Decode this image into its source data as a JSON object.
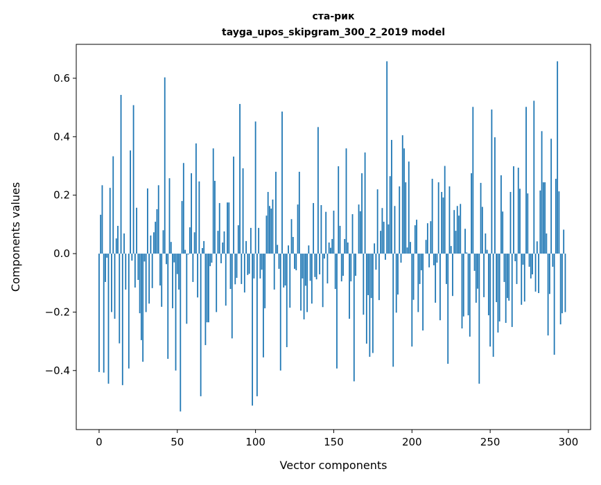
{
  "chart_data": {
    "type": "bar",
    "title": "ста-рик",
    "subtitle": "tayga_upos_skipgram_300_2_2019 model",
    "xlabel": "Vector components",
    "ylabel": "Components values",
    "xlim": [
      -14.6,
      314.2
    ],
    "ylim": [
      -0.602,
      0.716
    ],
    "xticks": [
      0,
      50,
      100,
      150,
      200,
      250,
      300
    ],
    "xtick_labels": [
      "0",
      "50",
      "100",
      "150",
      "200",
      "250",
      "300"
    ],
    "yticks": [
      -0.4,
      -0.2,
      0.0,
      0.2,
      0.4,
      0.6
    ],
    "ytick_labels": [
      "−0.4",
      "−0.2",
      "0.0",
      "0.2",
      "0.4",
      "0.6"
    ],
    "grid": false,
    "bar_color": "#1f77b4",
    "values": [
      -0.405,
      0.133,
      0.234,
      -0.407,
      -0.097,
      -0.014,
      -0.445,
      0.225,
      -0.2,
      0.333,
      -0.223,
      0.052,
      0.095,
      -0.307,
      0.543,
      -0.45,
      0.069,
      -0.123,
      0.0,
      -0.393,
      0.353,
      -0.024,
      0.508,
      -0.116,
      0.157,
      -0.09,
      -0.204,
      -0.296,
      -0.37,
      -0.027,
      -0.2,
      0.223,
      -0.171,
      0.062,
      -0.118,
      0.073,
      0.109,
      0.152,
      0.234,
      -0.109,
      -0.182,
      0.08,
      0.603,
      -0.036,
      -0.36,
      0.258,
      0.04,
      -0.187,
      -0.03,
      -0.4,
      -0.07,
      -0.123,
      -0.54,
      0.18,
      0.31,
      0.013,
      -0.24,
      -0.003,
      0.09,
      0.275,
      -0.097,
      0.073,
      0.377,
      -0.15,
      0.247,
      -0.488,
      0.019,
      0.043,
      -0.313,
      -0.235,
      -0.235,
      -0.043,
      -0.031,
      0.36,
      0.249,
      -0.2,
      0.078,
      0.173,
      -0.033,
      0.038,
      0.076,
      -0.178,
      0.175,
      0.175,
      -0.121,
      -0.29,
      0.332,
      -0.105,
      -0.083,
      0.097,
      0.512,
      -0.104,
      0.292,
      -0.133,
      0.043,
      -0.073,
      -0.069,
      0.088,
      -0.52,
      -0.085,
      0.452,
      -0.488,
      0.088,
      -0.085,
      -0.055,
      -0.355,
      -0.187,
      0.13,
      0.211,
      0.163,
      0.154,
      0.185,
      -0.123,
      0.28,
      0.03,
      -0.052,
      -0.4,
      0.486,
      -0.116,
      -0.109,
      -0.32,
      0.028,
      -0.185,
      0.118,
      0.057,
      -0.052,
      -0.057,
      0.168,
      0.28,
      -0.195,
      -0.085,
      -0.225,
      -0.11,
      -0.2,
      0.028,
      -0.093,
      -0.171,
      0.173,
      -0.08,
      -0.088,
      0.433,
      -0.071,
      0.166,
      -0.183,
      -0.017,
      0.143,
      -0.102,
      0.038,
      0.02,
      0.05,
      0.147,
      -0.121,
      -0.393,
      0.299,
      0.095,
      -0.095,
      -0.076,
      0.05,
      0.36,
      0.038,
      -0.223,
      -0.095,
      0.135,
      -0.437,
      -0.076,
      0.0,
      0.168,
      0.145,
      0.275,
      -0.209,
      0.346,
      -0.308,
      -0.142,
      -0.353,
      -0.152,
      -0.34,
      0.035,
      -0.055,
      0.22,
      -0.159,
      0.078,
      0.156,
      0.109,
      -0.021,
      0.658,
      0.1,
      0.265,
      0.389,
      -0.387,
      0.163,
      -0.202,
      -0.14,
      0.23,
      -0.031,
      0.405,
      0.36,
      0.244,
      0.021,
      0.315,
      0.04,
      -0.318,
      -0.158,
      0.097,
      0.116,
      -0.2,
      -0.104,
      -0.057,
      -0.263,
      0.0,
      0.047,
      0.104,
      -0.047,
      0.111,
      0.256,
      -0.04,
      -0.168,
      -0.031,
      0.244,
      -0.228,
      0.211,
      0.192,
      0.3,
      -0.104,
      -0.377,
      0.23,
      0.026,
      -0.145,
      0.149,
      0.078,
      0.163,
      0.13,
      0.17,
      -0.256,
      -0.215,
      0.085,
      0.004,
      -0.211,
      -0.284,
      0.275,
      0.502,
      -0.059,
      -0.168,
      -0.12,
      -0.445,
      0.242,
      0.16,
      -0.149,
      0.069,
      0.013,
      -0.211,
      -0.318,
      0.493,
      -0.353,
      0.398,
      -0.166,
      -0.27,
      -0.232,
      0.268,
      0.144,
      -0.097,
      -0.237,
      -0.152,
      -0.161,
      0.211,
      -0.251,
      0.299,
      -0.026,
      -0.104,
      0.294,
      0.222,
      -0.175,
      -0.038,
      -0.164,
      0.502,
      0.206,
      -0.045,
      -0.085,
      -0.071,
      0.523,
      -0.13,
      0.042,
      -0.135,
      0.216,
      0.419,
      0.244,
      0.244,
      0.069,
      -0.28,
      -0.138,
      0.393,
      -0.045,
      -0.346,
      0.256,
      0.658,
      0.213,
      -0.242,
      -0.204,
      0.082,
      -0.2
    ]
  }
}
